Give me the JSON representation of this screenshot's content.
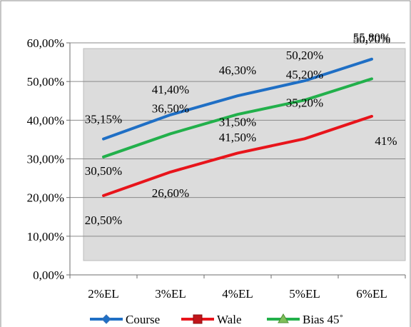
{
  "chart_data": {
    "type": "line",
    "title": "",
    "xlabel": "",
    "ylabel": "",
    "categories": [
      "2%EL",
      "3%EL",
      "4%EL",
      "5%EL",
      "6%EL"
    ],
    "ylim": [
      0,
      60
    ],
    "yticks": [
      "0,00%",
      "10,00%",
      "20,00%",
      "30,00%",
      "40,00%",
      "50,00%",
      "60,00%"
    ],
    "grid": "horizontal",
    "legend_position": "bottom",
    "series": [
      {
        "name": "Course",
        "color": "#1f6fc5",
        "marker": "diamond",
        "values": [
          35.15,
          41.4,
          46.3,
          50.2,
          55.8
        ],
        "labels": [
          "35,15%",
          "41,40%",
          "46,30%",
          "50,20%",
          "55,80%"
        ]
      },
      {
        "name": "Wale",
        "color": "#e8141b",
        "marker": "square",
        "values": [
          20.5,
          26.6,
          31.5,
          35.2,
          41
        ],
        "labels": [
          "20,50%",
          "26,60%",
          "31,50%",
          "35,20%",
          "41%"
        ]
      },
      {
        "name": "Bias 45˚",
        "color": "#22b04b",
        "marker": "triangle",
        "values": [
          30.5,
          36.5,
          41.5,
          45.2,
          50.7
        ],
        "labels": [
          "30,50%",
          "36,50%",
          "41,50%",
          "45,20%",
          "50,70%"
        ]
      }
    ]
  }
}
